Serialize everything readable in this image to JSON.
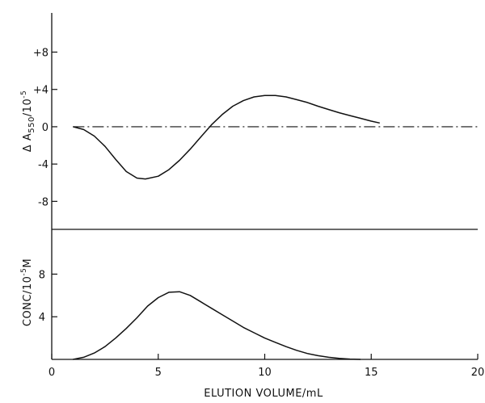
{
  "chart_data": [
    {
      "type": "line",
      "ylabel_main": "Δ A",
      "ylabel_sub": "550",
      "ylabel_tail": "/10",
      "ylabel_sup": "-5",
      "ylim": [
        -11,
        12.2
      ],
      "yticks": [
        {
          "value": 8,
          "label": "+8"
        },
        {
          "value": 4,
          "label": "+4"
        },
        {
          "value": 0,
          "label": "0"
        },
        {
          "value": -4,
          "label": "-4"
        },
        {
          "value": -8,
          "label": "-8"
        }
      ],
      "baseline": 0,
      "series": [
        {
          "x": [
            1.0,
            1.5,
            2.0,
            2.5,
            3.0,
            3.5,
            4.0,
            4.4,
            5.0,
            5.5,
            6.0,
            6.5,
            7.0,
            7.5,
            8.0,
            8.5,
            9.0,
            9.5,
            10.0,
            10.5,
            11.0,
            11.5,
            12.0,
            12.5,
            13.0,
            13.5,
            14.0,
            14.5,
            15.0,
            15.4
          ],
          "y": [
            0.0,
            -0.3,
            -1.0,
            -2.1,
            -3.5,
            -4.8,
            -5.5,
            -5.6,
            -5.3,
            -4.6,
            -3.6,
            -2.4,
            -1.1,
            0.2,
            1.3,
            2.2,
            2.8,
            3.2,
            3.35,
            3.35,
            3.2,
            2.9,
            2.6,
            2.2,
            1.85,
            1.5,
            1.2,
            0.9,
            0.6,
            0.4
          ]
        }
      ]
    },
    {
      "type": "line",
      "ylabel_main": "CONC/10",
      "ylabel_sup": "-5",
      "ylabel_tail": "M",
      "xlabel": "ELUTION VOLUME/mL",
      "xlim": [
        0,
        20
      ],
      "ylim": [
        0,
        12.2
      ],
      "xticks": [
        0,
        5,
        10,
        15,
        20
      ],
      "yticks": [
        {
          "value": 8,
          "label": "8"
        },
        {
          "value": 4,
          "label": "4"
        }
      ],
      "series": [
        {
          "x": [
            1.0,
            1.5,
            2.0,
            2.5,
            3.0,
            3.5,
            4.0,
            4.5,
            5.0,
            5.5,
            6.0,
            6.5,
            7.0,
            7.5,
            8.0,
            8.5,
            9.0,
            9.5,
            10.0,
            10.5,
            11.0,
            11.5,
            12.0,
            12.5,
            13.0,
            13.5,
            14.0,
            14.5
          ],
          "y": [
            0.0,
            0.2,
            0.6,
            1.2,
            2.0,
            2.9,
            3.9,
            5.0,
            5.8,
            6.3,
            6.35,
            6.0,
            5.4,
            4.8,
            4.2,
            3.6,
            3.0,
            2.5,
            2.0,
            1.6,
            1.2,
            0.85,
            0.55,
            0.35,
            0.2,
            0.1,
            0.03,
            0.0
          ]
        }
      ]
    }
  ]
}
